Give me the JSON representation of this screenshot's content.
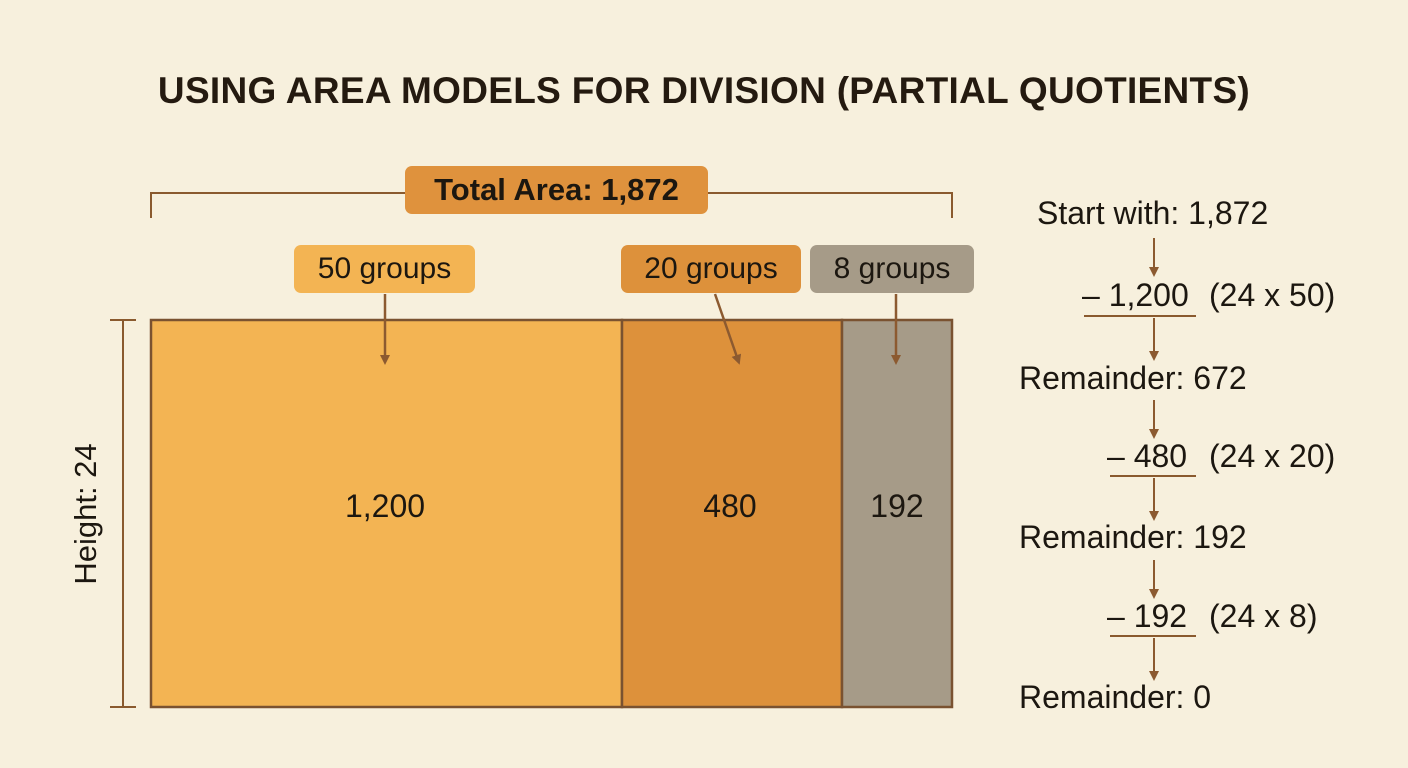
{
  "title": "USING AREA MODELS FOR DIVISION (PARTIAL QUOTIENTS)",
  "total_label": "Total Area: 1,872",
  "height_label": "Height: 24",
  "groups": [
    {
      "label": "50 groups",
      "area": "1,200",
      "color": "#f3b453"
    },
    {
      "label": "20 groups",
      "area": "480",
      "color": "#dd913b"
    },
    {
      "label": "8 groups",
      "area": "192",
      "color": "#a69b88"
    }
  ],
  "steps": {
    "start": "Start with: 1,872",
    "sub1": "– 1,200",
    "calc1": "(24 x 50)",
    "rem1": "Remainder: 672",
    "sub2": "– 480",
    "calc2": "(24 x 20)",
    "rem2": "Remainder: 192",
    "sub3": "– 192",
    "calc3": "(24 x 8)",
    "rem3": "Remainder: 0"
  },
  "colors": {
    "background": "#f7f0dd",
    "stroke": "#8a5a2e",
    "arrow": "#8c5a30"
  }
}
